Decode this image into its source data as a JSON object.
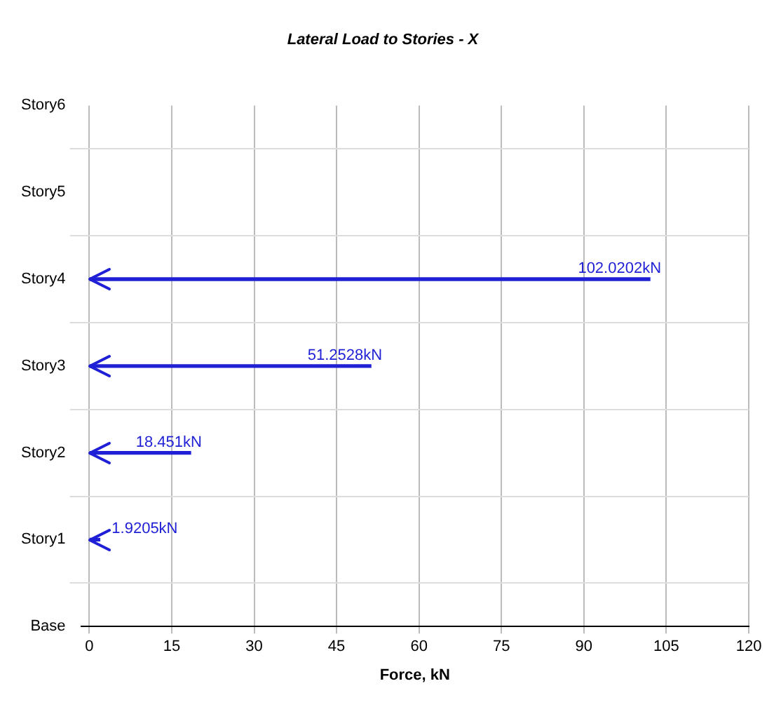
{
  "chart_data": {
    "type": "bar",
    "orientation": "horizontal",
    "title": "Lateral Load to Stories - X",
    "xlabel": "Force, kN",
    "categories": [
      "Story6",
      "Story5",
      "Story4",
      "Story3",
      "Story2",
      "Story1",
      "Base"
    ],
    "values": [
      null,
      null,
      102.0202,
      51.2528,
      18.451,
      1.9205,
      null
    ],
    "value_labels": [
      null,
      null,
      "102.0202kN",
      "51.2528kN",
      "18.451kN",
      "1.9205kN",
      null
    ],
    "color": "#1f1fd6",
    "xlim": [
      -1.5,
      120
    ],
    "xticks": [
      0,
      15,
      30,
      45,
      60,
      75,
      90,
      105,
      120
    ],
    "grid": true,
    "legend": false
  }
}
